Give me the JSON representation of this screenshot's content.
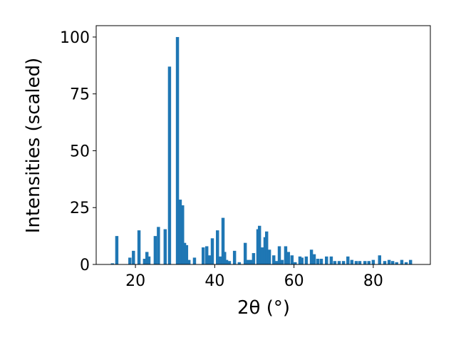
{
  "chart_data": {
    "type": "bar",
    "xlabel": "2θ (°)",
    "ylabel": "Intensities (scaled)",
    "color": "#1f77b4",
    "x": [
      14.2,
      15.3,
      18.6,
      19.5,
      20.9,
      22.3,
      22.9,
      23.4,
      25.0,
      25.8,
      27.5,
      28.6,
      30.6,
      31.3,
      31.9,
      32.4,
      32.9,
      33.5,
      34.9,
      37.1,
      38.0,
      38.7,
      39.4,
      40.7,
      41.4,
      42.1,
      42.5,
      43.0,
      43.7,
      45.0,
      46.2,
      47.7,
      48.4,
      49.1,
      49.8,
      50.9,
      51.3,
      52.0,
      52.7,
      53.1,
      53.8,
      54.9,
      55.6,
      56.3,
      57.0,
      57.9,
      58.6,
      59.5,
      60.3,
      61.5,
      62.0,
      63.1,
      64.4,
      65.1,
      66.0,
      66.9,
      68.2,
      69.4,
      70.3,
      71.4,
      72.5,
      73.6,
      74.6,
      75.7,
      76.6,
      77.9,
      78.9,
      80.0,
      81.6,
      82.9,
      84.0,
      84.9,
      85.9,
      87.2,
      88.3,
      89.4
    ],
    "values": [
      0.5,
      12.5,
      3,
      6,
      15,
      2.5,
      5.5,
      3.5,
      12.5,
      16.5,
      15.5,
      87,
      100,
      28.5,
      26,
      9.5,
      8.5,
      2,
      3,
      7.5,
      8,
      4,
      11.5,
      15,
      3.5,
      20.5,
      5.5,
      2,
      1.5,
      6,
      1,
      9.5,
      2,
      2,
      5,
      15.5,
      17,
      7.5,
      12,
      14.5,
      6.5,
      4,
      1.5,
      8,
      2,
      8,
      5.5,
      4,
      1,
      3.5,
      3,
      3.5,
      6.5,
      4.5,
      2.5,
      2.5,
      3.5,
      3.5,
      1.5,
      1.5,
      1.5,
      3.5,
      2,
      1.5,
      1.5,
      1.5,
      1.5,
      2,
      4,
      1.5,
      2,
      1.5,
      1,
      2,
      1,
      2
    ],
    "xlim": [
      10.1,
      94.4
    ],
    "ylim": [
      0,
      105
    ],
    "xticks": [
      20,
      40,
      60,
      80
    ],
    "yticks": [
      0,
      25,
      50,
      75,
      100
    ]
  }
}
